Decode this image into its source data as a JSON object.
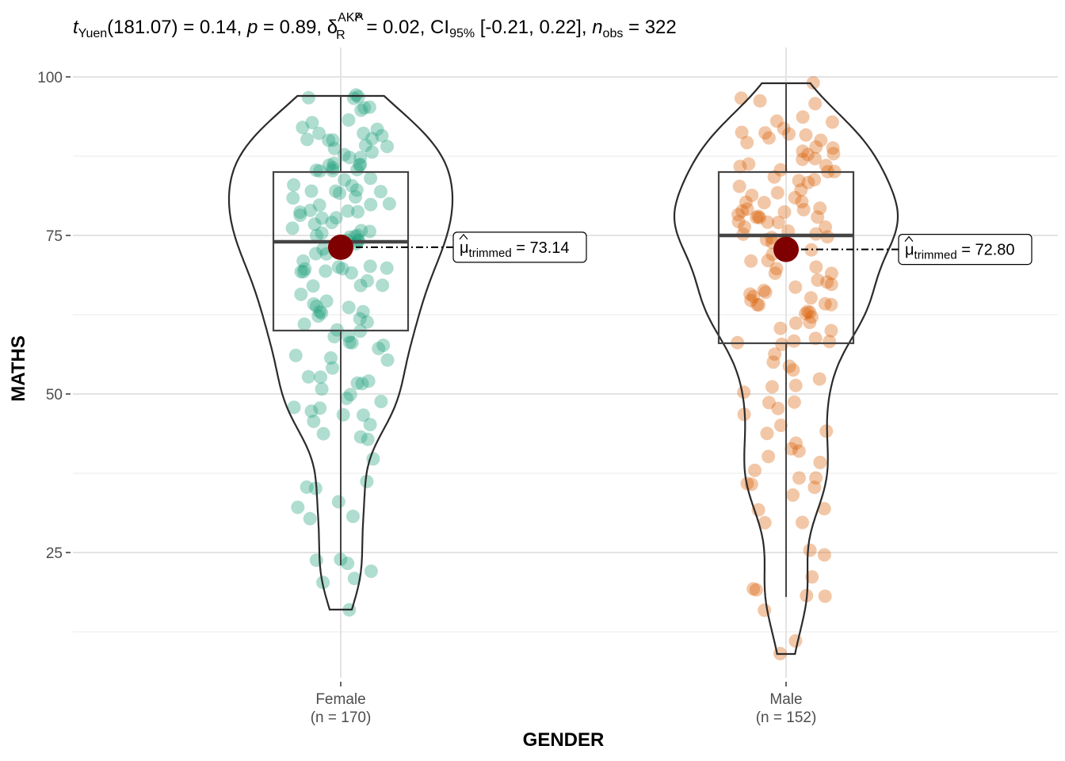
{
  "title": {
    "t_sym": "t",
    "t_sub": "Yuen",
    "t_df": "(181.07)",
    "t_val": " = 0.14, ",
    "p_sym": "p",
    "p_val": " = 0.89, ",
    "delta_sym": "δ",
    "delta_sup": "AKP",
    "delta_sub": "R",
    "delta_val": " = 0.02, CI",
    "ci_sub": "95%",
    "ci_val": " [-0.21, 0.22], ",
    "n_sym": "n",
    "n_sub": "obs",
    "n_val": " = 322"
  },
  "colors": {
    "female": "#1B9E77",
    "male": "#D95F02",
    "mean_point": "#7F0000",
    "outline": "#2b2b2b",
    "grid_major": "#e3e3e3",
    "grid_minor": "#ededed"
  },
  "chart_data": {
    "type": "violin-box-scatter",
    "xlabel": "GENDER",
    "ylabel": "MATHS",
    "ylim": [
      6,
      103
    ],
    "yticks": [
      25,
      50,
      75,
      100
    ],
    "grid": true,
    "categories": [
      {
        "name": "Female",
        "n_label": "(n = 170)",
        "n": 170,
        "color": "#1B9E77",
        "box": {
          "q1": 60,
          "median": 74,
          "q3": 85,
          "min": 23,
          "max": 97
        },
        "trimmed_mean": 73.14,
        "mean_label_mu": "μ",
        "mean_label_sub": "trimmed",
        "mean_label_val": " = 73.14",
        "violin_range": [
          16,
          97
        ],
        "points": [
          97,
          97,
          97,
          97,
          95,
          95,
          95,
          93,
          93,
          92,
          92,
          91,
          91,
          91,
          90,
          90,
          90,
          90,
          89,
          89,
          89,
          88,
          88,
          87,
          87,
          86,
          86,
          86,
          86,
          86,
          85,
          85,
          85,
          85,
          84,
          84,
          83,
          83,
          82,
          82,
          82,
          82,
          82,
          81,
          81,
          80,
          80,
          80,
          79,
          79,
          79,
          79,
          78,
          78,
          78,
          77,
          77,
          76,
          76,
          76,
          75,
          75,
          75,
          75,
          75,
          74,
          74,
          74,
          74,
          73,
          72,
          72,
          71,
          70,
          70,
          70,
          70,
          70,
          69,
          69,
          69,
          69,
          68,
          67,
          67,
          67,
          66,
          65,
          64,
          64,
          64,
          63,
          63,
          63,
          62,
          62,
          61,
          61,
          60,
          60,
          59,
          59,
          58,
          58,
          58,
          57,
          56,
          56,
          55,
          54,
          53,
          53,
          52,
          52,
          52,
          51,
          50,
          49,
          49,
          48,
          48,
          47,
          47,
          47,
          46,
          45,
          44,
          43,
          43,
          40,
          36,
          35,
          35,
          33,
          32,
          31,
          30,
          24,
          24,
          23,
          22,
          21,
          20,
          16
        ]
      },
      {
        "name": "Male",
        "n_label": "(n = 152)",
        "n": 152,
        "color": "#D95F02",
        "box": {
          "q1": 58,
          "median": 75,
          "q3": 85,
          "min": 18,
          "max": 99
        },
        "trimmed_mean": 72.8,
        "mean_label_mu": "μ",
        "mean_label_sub": "trimmed",
        "mean_label_val": " = 72.80",
        "violin_range": [
          9,
          99
        ],
        "points": [
          99,
          97,
          96,
          96,
          94,
          93,
          93,
          92,
          91,
          91,
          91,
          91,
          90,
          90,
          90,
          89,
          89,
          88,
          88,
          88,
          87,
          87,
          86,
          86,
          86,
          85,
          85,
          85,
          84,
          84,
          84,
          83,
          83,
          82,
          82,
          81,
          81,
          80,
          80,
          80,
          79,
          79,
          79,
          79,
          79,
          78,
          78,
          78,
          78,
          78,
          77,
          77,
          77,
          76,
          76,
          76,
          75,
          75,
          75,
          75,
          74,
          74,
          74,
          74,
          73,
          73,
          73,
          72,
          71,
          71,
          70,
          70,
          69,
          69,
          68,
          68,
          67,
          67,
          66,
          66,
          66,
          65,
          65,
          65,
          64,
          64,
          64,
          64,
          63,
          63,
          63,
          62,
          61,
          61,
          60,
          60,
          59,
          58,
          58,
          58,
          58,
          56,
          55,
          54,
          54,
          52,
          51,
          51,
          50,
          49,
          49,
          48,
          47,
          45,
          44,
          44,
          42,
          41,
          41,
          40,
          39,
          38,
          37,
          37,
          36,
          36,
          35,
          34,
          32,
          32,
          30,
          30,
          25,
          25,
          21,
          19,
          19,
          18,
          18,
          16,
          11,
          9
        ]
      }
    ]
  }
}
